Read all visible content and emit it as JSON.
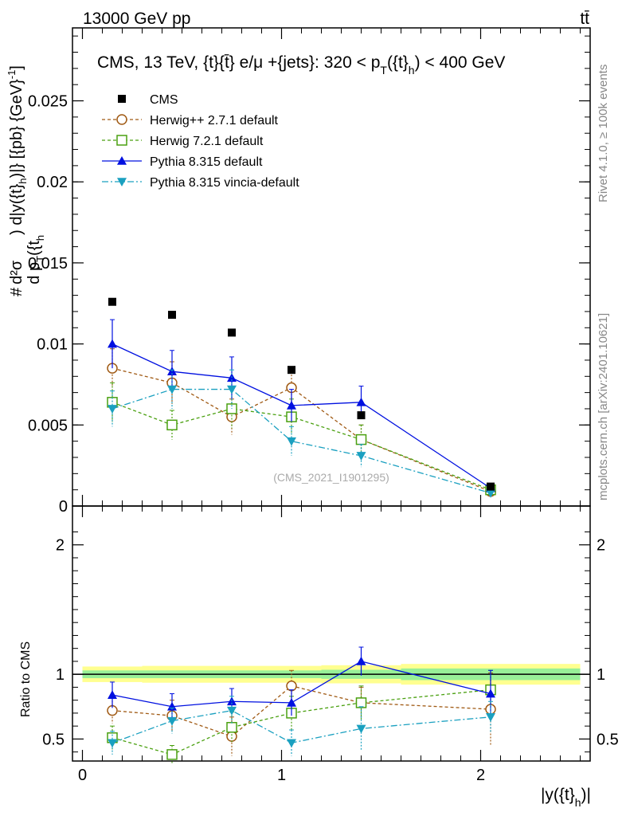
{
  "header": {
    "energy_label": "13000 GeV pp",
    "process_label": "tt̄"
  },
  "side_labels": {
    "rivet": "Rivet 4.1.0, ≥ 100k events",
    "mcplots": "mcplots.cern.ch [arXiv:2401.10621]"
  },
  "chart_data": {
    "type": "line",
    "title": "CMS, 13 TeV, {t}{t̄} e/μ +{jets}: 320 <  p_T({t}_h) < 400 GeV",
    "title_parts": {
      "main": "CMS, 13 TeV, {t}{t̄} e/μ +{jets}: 320 <  p",
      "sub1": "T",
      "mid": "({t}",
      "sub2": "h",
      "tail": ") < 400 GeV"
    },
    "watermark": "(CMS_2021_I1901295)",
    "ylabel": "d²σ / d p_T({t}_h) d|y({t}_h)| [{pb} {GeV}⁻¹]",
    "ylabel_parts": {
      "hash": "#",
      "num": "d²σ",
      "den": "d p",
      "den_sub": "T",
      "den_tail": "({t",
      "den_sub2": "h",
      "rest": ") d|y({t}",
      "rest_sub": "h",
      "rest_tail": ")|} [{pb} {GeV}",
      "rest_sup": "-1",
      "rest_end": "]"
    },
    "xlabel": "|y({t}_h)|",
    "xlabel_parts": {
      "main": "|y({t}",
      "sub": "h",
      "end": ")|"
    },
    "ratio_ylabel": "Ratio to CMS",
    "xlim": [
      -0.05,
      2.55
    ],
    "ylim_main": [
      0,
      0.0295
    ],
    "ylim_ratio": [
      0.33,
      2.3
    ],
    "x_ticks": [
      {
        "value": 0,
        "label": "0"
      },
      {
        "value": 1,
        "label": "1"
      },
      {
        "value": 2,
        "label": "2"
      }
    ],
    "y_ticks_main": [
      {
        "value": 0,
        "label": "0"
      },
      {
        "value": 0.005,
        "label": "0.005"
      },
      {
        "value": 0.01,
        "label": "0.01"
      },
      {
        "value": 0.015,
        "label": "0.015"
      },
      {
        "value": 0.02,
        "label": "0.02"
      },
      {
        "value": 0.025,
        "label": "0.025"
      }
    ],
    "y_ticks_ratio": [
      {
        "value": 0.5,
        "label": "0.5"
      },
      {
        "value": 1,
        "label": "1"
      },
      {
        "value": 2,
        "label": "2"
      }
    ],
    "bins": [
      {
        "low": 0.0,
        "high": 0.3
      },
      {
        "low": 0.3,
        "high": 0.6
      },
      {
        "low": 0.6,
        "high": 0.9
      },
      {
        "low": 0.9,
        "high": 1.2
      },
      {
        "low": 1.2,
        "high": 1.6
      },
      {
        "low": 1.6,
        "high": 2.5
      }
    ],
    "x": [
      0.15,
      0.45,
      0.75,
      1.05,
      1.4,
      2.05
    ],
    "data": {
      "name": "CMS",
      "values": [
        0.0126,
        0.0118,
        0.0107,
        0.0084,
        0.0056,
        0.0012
      ],
      "band_inner": [
        0.03,
        0.03,
        0.03,
        0.03,
        0.035,
        0.045
      ],
      "band_outer": [
        0.06,
        0.065,
        0.065,
        0.065,
        0.07,
        0.08
      ]
    },
    "series": [
      {
        "name": "Herwig++ 2.7.1 default",
        "color": "#a05a14",
        "dash": "4,3",
        "marker": "circle-open",
        "values": [
          0.0085,
          0.0076,
          0.0055,
          0.0073,
          0.0041,
          0.0009
        ],
        "errors": [
          0.0012,
          0.0013,
          0.0011,
          0.0012,
          0.0009,
          0.0003
        ],
        "ratio": [
          0.72,
          0.68,
          0.52,
          0.91,
          0.78,
          0.73
        ],
        "ratio_err": [
          0.1,
          0.12,
          0.15,
          0.12,
          0.12,
          0.28
        ]
      },
      {
        "name": "Herwig 7.2.1 default",
        "color": "#4aa010",
        "dash": "4,3",
        "marker": "square-open",
        "values": [
          0.0064,
          0.005,
          0.006,
          0.0055,
          0.0041,
          0.001
        ],
        "errors": [
          0.0012,
          0.0009,
          0.0012,
          0.0011,
          0.0009,
          0.0003
        ],
        "ratio": [
          0.51,
          0.38,
          0.59,
          0.7,
          0.78,
          0.88
        ],
        "ratio_err": [
          0.09,
          0.07,
          0.12,
          0.13,
          0.13,
          0.15
        ]
      },
      {
        "name": "Pythia 8.315 default",
        "color": "#0010e0",
        "dash": "",
        "marker": "triangle-up",
        "values": [
          0.01,
          0.0083,
          0.0079,
          0.0062,
          0.0064,
          0.0011
        ],
        "errors": [
          0.0015,
          0.0013,
          0.0013,
          0.001,
          0.001,
          0.0002
        ],
        "ratio": [
          0.84,
          0.75,
          0.79,
          0.78,
          1.1,
          0.85
        ],
        "ratio_err": [
          0.1,
          0.1,
          0.1,
          0.1,
          0.11,
          0.18
        ]
      },
      {
        "name": "Pythia 8.315 vincia-default",
        "color": "#1aa0c0",
        "dash": "8,3,2,3",
        "marker": "triangle-down",
        "values": [
          0.006,
          0.0072,
          0.0072,
          0.004,
          0.0031,
          0.0008
        ],
        "errors": [
          0.0011,
          0.0012,
          0.0012,
          0.0009,
          0.0007,
          0.0002
        ],
        "ratio": [
          0.47,
          0.64,
          0.72,
          0.47,
          0.58,
          0.67
        ],
        "ratio_err": [
          0.09,
          0.1,
          0.11,
          0.1,
          0.17,
          0.12
        ]
      }
    ],
    "legend": [
      "CMS",
      "Herwig++ 2.7.1 default",
      "Herwig 7.2.1 default",
      "Pythia 8.315 default",
      "Pythia 8.315 vincia-default"
    ]
  }
}
